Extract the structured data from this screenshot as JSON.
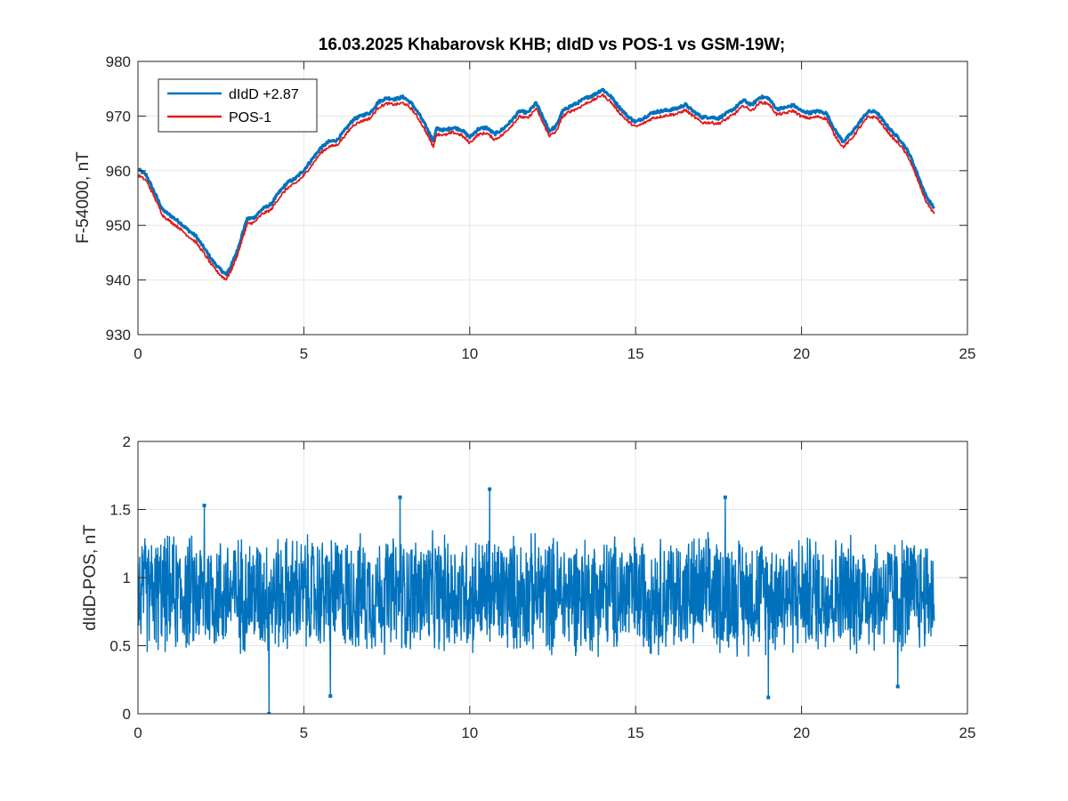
{
  "figure": {
    "title": "16.03.2025  Khabarovsk KHB; dIdD vs POS-1 vs GSM-19W;"
  },
  "colors": {
    "series_blue": "#0072BD",
    "series_red": "#E41A1C",
    "grid": "#e6e6e6",
    "axes": "#262626"
  },
  "chart_data": [
    {
      "type": "line",
      "title": "16.03.2025  Khabarovsk KHB; dIdD vs POS-1 vs GSM-19W;",
      "xlabel": "",
      "ylabel": "F-54000, nT",
      "xlim": [
        0,
        25
      ],
      "ylim": [
        930,
        980
      ],
      "xticks": [
        0,
        5,
        10,
        15,
        20,
        25
      ],
      "yticks": [
        930,
        940,
        950,
        960,
        970,
        980
      ],
      "xtick_labels": [
        "0",
        "5",
        "10",
        "15",
        "20",
        "25"
      ],
      "ytick_labels": [
        "930",
        "940",
        "950",
        "960",
        "970",
        "980"
      ],
      "grid": true,
      "legend_position": "top-left",
      "x": [
        0,
        0.25,
        0.5,
        0.75,
        1.0,
        1.25,
        1.5,
        1.75,
        2.0,
        2.25,
        2.5,
        2.65,
        2.8,
        3.0,
        3.2,
        3.3,
        3.5,
        3.75,
        4.0,
        4.25,
        4.5,
        4.75,
        5.0,
        5.25,
        5.5,
        5.75,
        6.0,
        6.25,
        6.5,
        6.75,
        7.0,
        7.25,
        7.5,
        7.75,
        8.0,
        8.25,
        8.5,
        8.75,
        8.9,
        9.0,
        9.25,
        9.5,
        9.75,
        10.0,
        10.25,
        10.5,
        10.75,
        11.0,
        11.25,
        11.5,
        11.75,
        12.0,
        12.25,
        12.4,
        12.6,
        12.8,
        13.0,
        13.25,
        13.5,
        13.75,
        14.0,
        14.25,
        14.5,
        14.75,
        15.0,
        15.25,
        15.5,
        15.75,
        16.0,
        16.25,
        16.5,
        16.75,
        17.0,
        17.25,
        17.5,
        17.75,
        18.0,
        18.25,
        18.5,
        18.75,
        19.0,
        19.25,
        19.5,
        19.75,
        20.0,
        20.25,
        20.5,
        20.75,
        21.0,
        21.25,
        21.5,
        21.75,
        22.0,
        22.25,
        22.5,
        22.75,
        23.0,
        23.25,
        23.5,
        23.75,
        24.0
      ],
      "series": [
        {
          "name": "dIdD +2.87",
          "color": "#0072BD",
          "values": [
            960.3,
            959.2,
            956.0,
            952.8,
            951.7,
            950.6,
            949.2,
            948.0,
            945.8,
            943.5,
            941.8,
            941.0,
            942.5,
            945.5,
            949.5,
            951.2,
            951.4,
            953.0,
            953.8,
            956.0,
            957.8,
            958.6,
            960.1,
            962.1,
            964.1,
            965.3,
            965.6,
            967.5,
            969.4,
            970.1,
            970.6,
            972.6,
            973.3,
            973.1,
            973.5,
            972.3,
            970.1,
            967.3,
            965.4,
            967.7,
            967.4,
            967.9,
            967.5,
            966.1,
            967.6,
            967.9,
            966.7,
            967.6,
            969.1,
            970.9,
            970.6,
            972.4,
            969.2,
            967.3,
            968.1,
            970.9,
            971.7,
            972.4,
            973.3,
            973.9,
            974.9,
            973.6,
            971.7,
            970.0,
            968.9,
            969.7,
            970.6,
            970.9,
            971.1,
            971.4,
            972.1,
            970.8,
            969.8,
            969.8,
            969.6,
            970.5,
            971.5,
            972.9,
            972.0,
            973.5,
            973.3,
            971.3,
            971.5,
            972.0,
            970.9,
            970.6,
            970.9,
            970.5,
            967.5,
            965.3,
            966.8,
            968.9,
            970.8,
            970.8,
            968.8,
            967.0,
            965.5,
            963.1,
            959.3,
            955.4,
            953.1
          ]
        },
        {
          "name": "POS-1",
          "color": "#E41A1C",
          "values": [
            959.2,
            958.2,
            955.1,
            951.8,
            950.6,
            949.5,
            948.1,
            946.9,
            944.8,
            942.5,
            940.8,
            940.1,
            941.6,
            944.6,
            948.5,
            950.3,
            950.5,
            952.1,
            952.8,
            955.0,
            956.8,
            957.7,
            959.1,
            961.1,
            963.2,
            964.4,
            964.7,
            966.5,
            968.4,
            969.1,
            969.6,
            971.6,
            972.3,
            972.1,
            972.4,
            971.3,
            969.1,
            966.3,
            964.4,
            966.7,
            966.5,
            967.0,
            966.5,
            965.1,
            966.6,
            966.9,
            965.7,
            966.6,
            968.2,
            969.9,
            969.6,
            971.4,
            968.2,
            966.4,
            967.1,
            969.9,
            970.8,
            971.4,
            972.3,
            973.0,
            973.9,
            972.6,
            970.7,
            969.1,
            968.0,
            968.7,
            969.6,
            969.9,
            970.2,
            970.4,
            971.1,
            969.9,
            968.8,
            968.8,
            968.6,
            969.5,
            970.5,
            971.9,
            971.0,
            972.5,
            972.3,
            970.3,
            970.5,
            971.0,
            969.9,
            969.6,
            969.9,
            969.5,
            966.5,
            964.3,
            965.8,
            967.9,
            969.8,
            969.8,
            967.9,
            966.0,
            964.5,
            962.1,
            958.3,
            954.4,
            952.1
          ]
        }
      ]
    },
    {
      "type": "line",
      "xlabel": "",
      "ylabel": "dIdD-POS, nT",
      "xlim": [
        0,
        25
      ],
      "ylim": [
        0,
        2
      ],
      "xticks": [
        0,
        5,
        10,
        15,
        20,
        25
      ],
      "yticks": [
        0,
        0.5,
        1,
        1.5,
        2
      ],
      "xtick_labels": [
        "0",
        "5",
        "10",
        "15",
        "20",
        "25"
      ],
      "ytick_labels": [
        "0",
        "0.5",
        "1",
        "1.5",
        "2"
      ],
      "grid": true,
      "marker": "point",
      "series": [
        {
          "color": "#0072BD",
          "description_points": "dense noisy difference ~0.88 mean, ±0.4",
          "x": [
            0,
            0.5,
            1.0,
            1.5,
            2.0,
            2.5,
            3.0,
            3.5,
            3.95,
            4.5,
            5.0,
            5.5,
            5.8,
            6.5,
            7.0,
            7.5,
            7.9,
            8.5,
            9.0,
            9.5,
            10.0,
            10.5,
            10.6,
            11.0,
            11.5,
            12.0,
            12.5,
            13.0,
            13.5,
            14.0,
            14.5,
            15.0,
            15.5,
            16.0,
            16.5,
            17.0,
            17.5,
            17.7,
            18.0,
            18.5,
            19.0,
            19.5,
            20.0,
            20.5,
            21.0,
            21.5,
            22.0,
            22.5,
            22.9,
            23.5,
            24.0
          ],
          "values": [
            0.9,
            0.85,
            0.95,
            0.8,
            1.53,
            0.9,
            0.85,
            0.9,
            0.0,
            0.88,
            0.92,
            0.85,
            0.13,
            0.9,
            0.88,
            0.93,
            1.59,
            0.85,
            0.9,
            0.87,
            0.92,
            0.88,
            1.65,
            0.9,
            0.85,
            0.93,
            0.88,
            0.9,
            0.86,
            0.92,
            0.88,
            0.9,
            0.85,
            0.93,
            0.88,
            0.9,
            0.87,
            1.59,
            0.9,
            0.88,
            0.12,
            0.92,
            0.86,
            0.9,
            0.88,
            0.91,
            0.85,
            0.9,
            0.2,
            0.88,
            0.9
          ],
          "mean": 0.88,
          "spread": 0.42
        }
      ]
    }
  ]
}
